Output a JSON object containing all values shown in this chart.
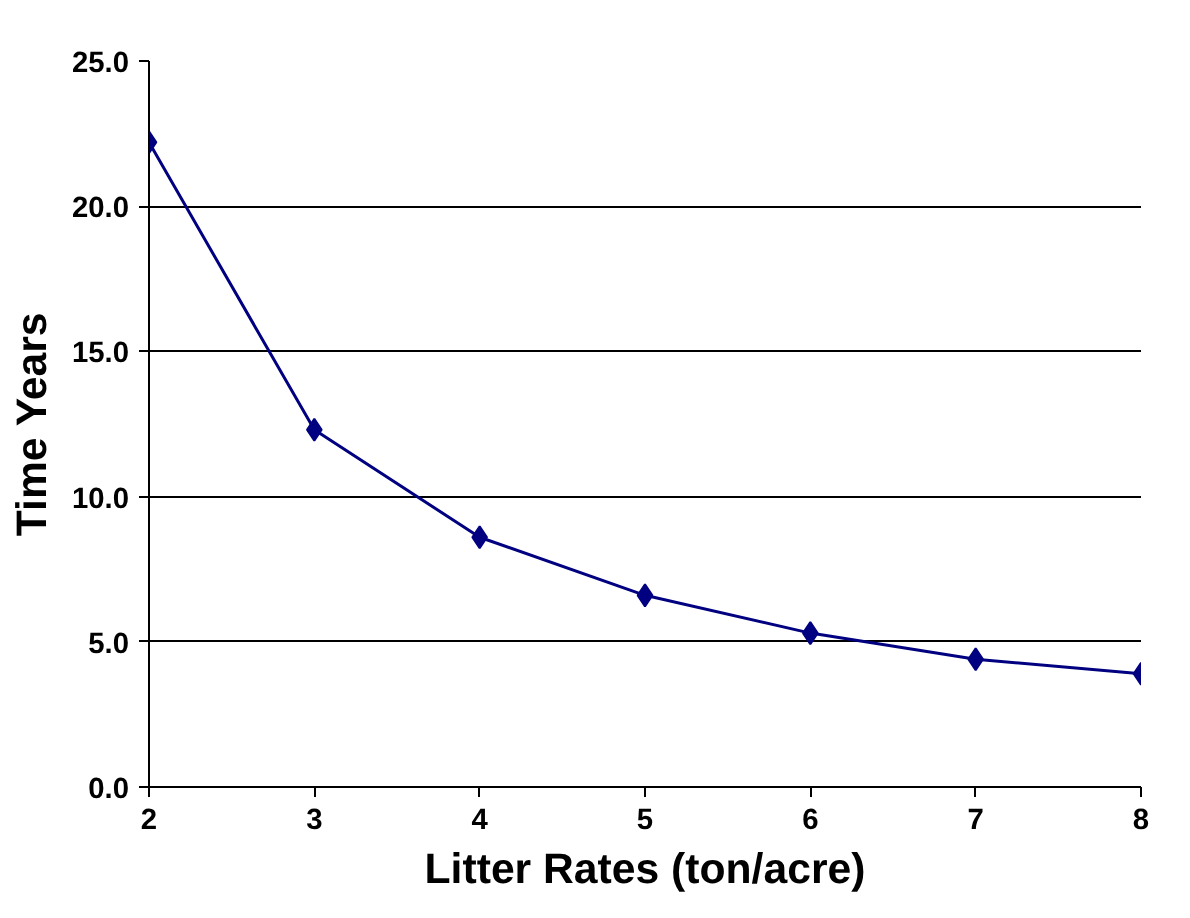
{
  "chart_data": {
    "type": "line",
    "xlabel": "Litter Rates (ton/acre)",
    "ylabel": "Time Years",
    "x": [
      2,
      3,
      4,
      5,
      6,
      7,
      8
    ],
    "series": [
      {
        "color": "#000080",
        "values": [
          22.2,
          12.3,
          8.6,
          6.6,
          5.3,
          4.4,
          3.9
        ]
      }
    ],
    "xlim": [
      2,
      8
    ],
    "xticks": [
      2,
      3,
      4,
      5,
      6,
      7,
      8
    ],
    "ylim": [
      0,
      25
    ],
    "yticks": [
      {
        "value": 0,
        "label": "0.0"
      },
      {
        "value": 5,
        "label": "5.0"
      },
      {
        "value": 10,
        "label": "10.0"
      },
      {
        "value": 15,
        "label": "15.0"
      },
      {
        "value": 20,
        "label": "20.0"
      },
      {
        "value": 25,
        "label": "25.0"
      }
    ],
    "grid": "y",
    "marker": "diamond",
    "line_style": "solid"
  }
}
